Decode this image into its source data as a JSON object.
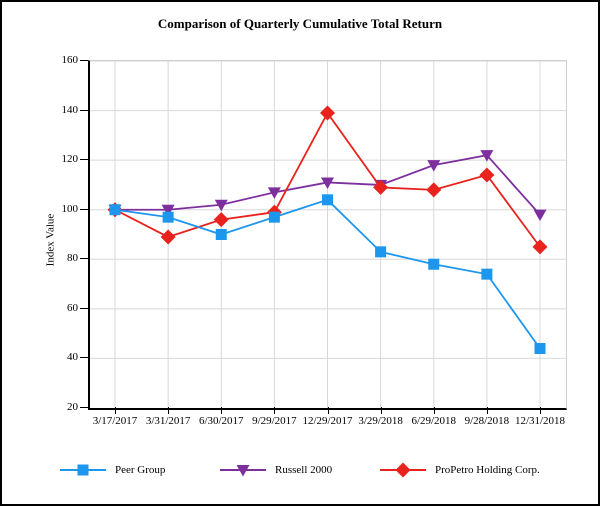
{
  "title": "Comparison of Quarterly Cumulative Total Return",
  "chart_data": {
    "type": "line",
    "x": [
      "3/17/2017",
      "3/31/2017",
      "6/30/2017",
      "9/29/2017",
      "12/29/2017",
      "3/29/2018",
      "6/29/2018",
      "9/28/2018",
      "12/31/2018"
    ],
    "series": [
      {
        "name": "Peer Group",
        "marker": "square",
        "color": "#1D96EE",
        "values": [
          100,
          97,
          90,
          97,
          104,
          83,
          78,
          74,
          44
        ]
      },
      {
        "name": "Russell 2000",
        "marker": "triangle-down",
        "color": "#7E2F9E",
        "values": [
          100,
          100,
          102,
          107,
          111,
          110,
          118,
          122,
          98
        ]
      },
      {
        "name": "ProPetro Holding Corp.",
        "marker": "diamond",
        "color": "#E8221C",
        "values": [
          100,
          89,
          96,
          99,
          139,
          109,
          108,
          114,
          85
        ]
      }
    ],
    "xlabel": "",
    "ylabel": "Index Value",
    "ylim": [
      20,
      160
    ],
    "ytick_step": 20,
    "grid": true,
    "grid_color": "#d8d8d8",
    "legend_position": "bottom",
    "draw_order": [
      1,
      2,
      0
    ]
  }
}
